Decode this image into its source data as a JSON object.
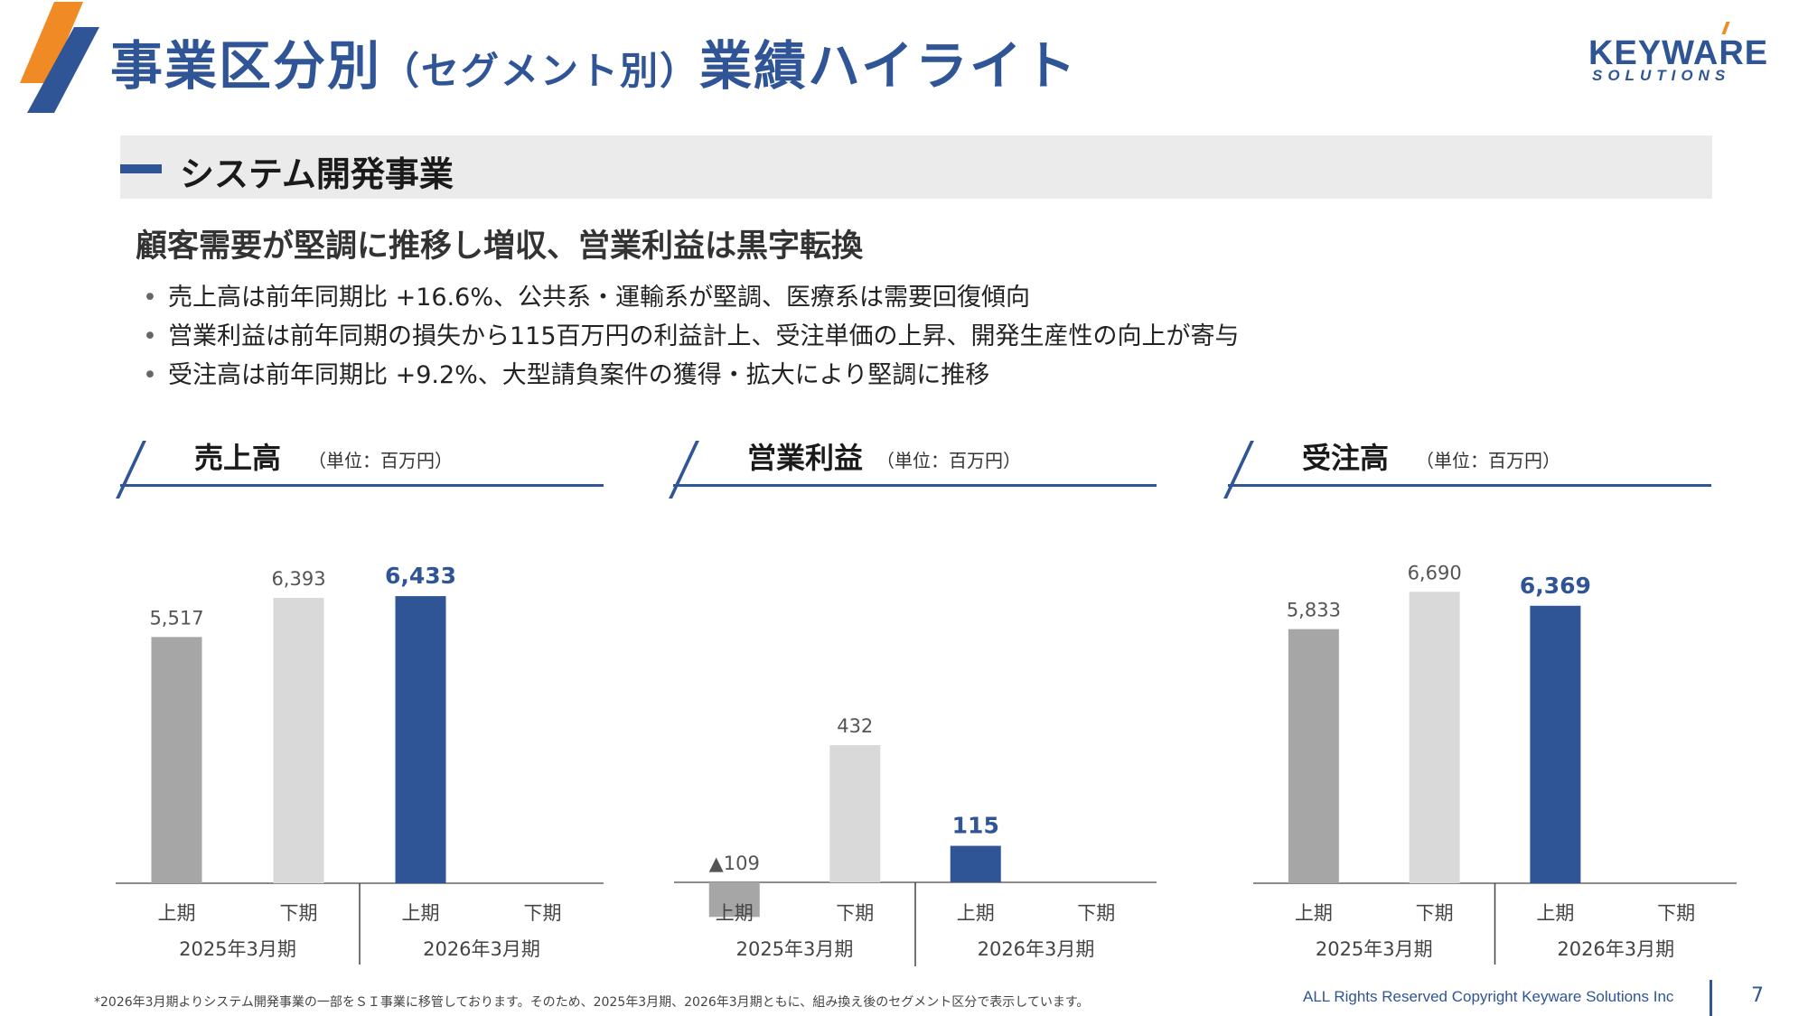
{
  "header": {
    "title_main": "事業区分別",
    "title_sub": "（セグメント別）",
    "title_end": "業績ハイライト",
    "brand_main": "KEYWARE",
    "brand_sub": "SOLUTIONS"
  },
  "section": {
    "label": "システム開発事業"
  },
  "headline": "顧客需要が堅調に推移し増収、営業利益は黒字転換",
  "bullets": [
    "売上高は前年同期比 +16.6%、公共系・運輸系が堅調、医療系は需要回復傾向",
    "営業利益は前年同期の損失から115百万円の利益計上、受注単価の上昇、開発生産性の向上が寄与",
    "受注高は前年同期比 +9.2%、大型請負案件の獲得・拡大により堅調に推移"
  ],
  "bullet_marker": "•",
  "colors": {
    "accent": "#2f5597",
    "orange": "#f08a24",
    "bar_dark_gray": "#a6a6a6",
    "bar_light_gray": "#d9d9d9",
    "bar_highlight": "#2f5597"
  },
  "chart_data": [
    {
      "type": "bar",
      "title": "売上高",
      "unit": "（単位：百万円）",
      "categories": [
        "上期",
        "下期",
        "上期",
        "下期"
      ],
      "groups": [
        "2025年3月期",
        "2026年3月期"
      ],
      "values": [
        5517,
        6393,
        6433,
        null
      ],
      "labels": [
        "5,517",
        "6,393",
        "6,433",
        ""
      ],
      "highlight_index": 2,
      "ylim": [
        0,
        7000
      ]
    },
    {
      "type": "bar",
      "title": "営業利益",
      "unit": "（単位：百万円）",
      "categories": [
        "上期",
        "下期",
        "上期",
        "下期"
      ],
      "groups": [
        "2025年3月期",
        "2026年3月期"
      ],
      "values": [
        -109,
        432,
        115,
        null
      ],
      "labels": [
        "▲109",
        "432",
        "115",
        ""
      ],
      "highlight_index": 2,
      "ylim": [
        -109,
        1000
      ]
    },
    {
      "type": "bar",
      "title": "受注高",
      "unit": "（単位：百万円）",
      "categories": [
        "上期",
        "下期",
        "上期",
        "下期"
      ],
      "groups": [
        "2025年3月期",
        "2026年3月期"
      ],
      "values": [
        5833,
        6690,
        6369,
        null
      ],
      "labels": [
        "5,833",
        "6,690",
        "6,369",
        ""
      ],
      "highlight_index": 2,
      "ylim": [
        0,
        7200
      ]
    }
  ],
  "footer": {
    "note": "*2026年3月期よりシステム開発事業の一部をＳＩ事業に移管しております。そのため、2025年3月期、2026年3月期ともに、組み換え後のセグメント区分で表示しています。",
    "copyright": "ALL Rights Reserved Copyright Keyware Solutions Inc",
    "page_number": "7"
  }
}
